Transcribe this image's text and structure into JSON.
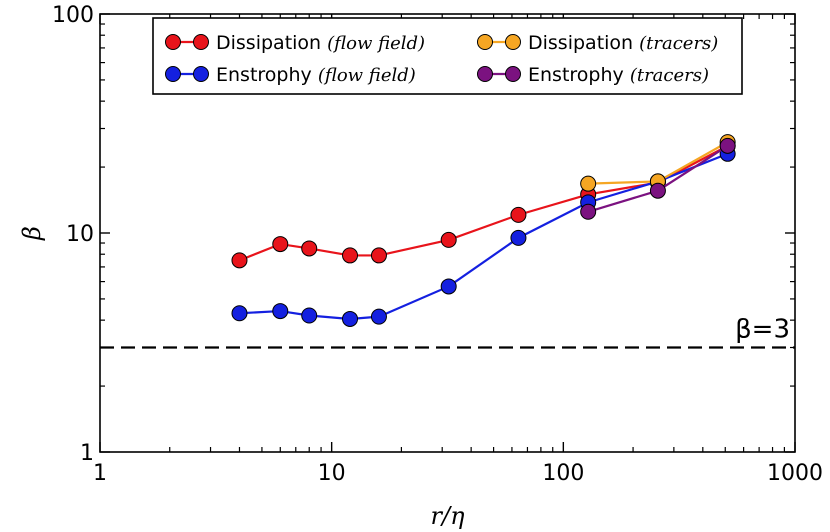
{
  "chart_data": {
    "type": "line",
    "xscale": "log",
    "yscale": "log",
    "xlim": [
      1,
      1000
    ],
    "ylim": [
      1,
      100
    ],
    "xlabel": "r/η",
    "ylabel": "β",
    "x_ticks": [
      1,
      10,
      100,
      1000
    ],
    "x_tick_labels": [
      "1",
      "10",
      "100",
      "1000"
    ],
    "y_ticks": [
      1,
      10,
      100
    ],
    "y_tick_labels": [
      "1",
      "10",
      "100"
    ],
    "legend_position": "top",
    "series": [
      {
        "name": "Dissipation (flow field)",
        "label_main": "Dissipation",
        "label_paren": "(flow field)",
        "color": "#e8141b",
        "x": [
          4,
          6,
          8,
          12,
          16,
          32,
          64,
          128,
          256,
          512
        ],
        "y": [
          7.5,
          8.9,
          8.5,
          7.9,
          7.9,
          9.3,
          12.1,
          15.0,
          17.0,
          25.0
        ]
      },
      {
        "name": "Enstrophy (flow field)",
        "label_main": "Enstrophy",
        "label_paren": "(flow field)",
        "color": "#1420e0",
        "x": [
          4,
          6,
          8,
          12,
          16,
          32,
          64,
          128,
          256,
          512
        ],
        "y": [
          4.3,
          4.4,
          4.2,
          4.05,
          4.15,
          5.7,
          9.5,
          13.8,
          17.2,
          23.0
        ]
      },
      {
        "name": "Dissipation (tracers)",
        "label_main": "Dissipation",
        "label_paren": "(tracers)",
        "color": "#f5a623",
        "x": [
          128,
          256,
          512
        ],
        "y": [
          16.8,
          17.2,
          26.0
        ]
      },
      {
        "name": "Enstrophy (tracers)",
        "label_main": "Enstrophy",
        "label_paren": "(tracers)",
        "color": "#7b1280",
        "x": [
          128,
          256,
          512
        ],
        "y": [
          12.5,
          15.6,
          25.0
        ]
      }
    ],
    "reference_line": {
      "y": 3,
      "style": "dashed",
      "label": "β=3"
    }
  }
}
